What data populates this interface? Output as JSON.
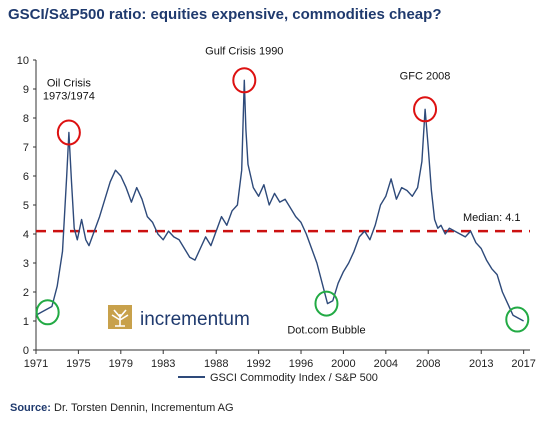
{
  "title": "GSCI/S&P500 ratio: equities expensive, commodities cheap?",
  "source_label": "Source:",
  "source_text": "Dr. Torsten Dennin, Incrementum AG",
  "logo_text": "incrementum",
  "chart_data": {
    "type": "line",
    "xlim": [
      1971,
      2017.6
    ],
    "ylim": [
      0,
      10
    ],
    "yticks": [
      0,
      1,
      2,
      3,
      4,
      5,
      6,
      7,
      8,
      9,
      10
    ],
    "xtick_labels": [
      "1971",
      "1975",
      "1979",
      "1983",
      "1988",
      "1992",
      "1996",
      "2000",
      "2004",
      "2008",
      "2013",
      "2017"
    ],
    "xtick_values": [
      1971,
      1975,
      1979,
      1983,
      1988,
      1992,
      1996,
      2000,
      2004,
      2008,
      2013,
      2017
    ],
    "grid": false,
    "legend": "bottom",
    "series": [
      {
        "name": "GSCI Commodity Index / S&P 500",
        "color": "#2e4a7a",
        "x": [
          1971.0,
          1971.5,
          1972.0,
          1972.5,
          1973.0,
          1973.5,
          1973.9,
          1974.1,
          1974.35,
          1974.6,
          1974.9,
          1975.3,
          1975.7,
          1976.0,
          1976.5,
          1977.0,
          1977.5,
          1978.0,
          1978.5,
          1979.0,
          1979.5,
          1980.0,
          1980.5,
          1981.0,
          1981.5,
          1982.0,
          1982.5,
          1983.0,
          1983.5,
          1984.0,
          1984.5,
          1985.0,
          1985.5,
          1986.0,
          1986.5,
          1987.0,
          1987.5,
          1988.0,
          1988.5,
          1989.0,
          1989.5,
          1990.0,
          1990.4,
          1990.65,
          1990.8,
          1991.0,
          1991.5,
          1992.0,
          1992.5,
          1993.0,
          1993.5,
          1994.0,
          1994.5,
          1995.0,
          1995.5,
          1996.0,
          1996.5,
          1997.0,
          1997.5,
          1998.0,
          1998.5,
          1999.0,
          1999.5,
          2000.0,
          2000.5,
          2001.0,
          2001.5,
          2002.0,
          2002.5,
          2003.0,
          2003.5,
          2004.0,
          2004.5,
          2005.0,
          2005.5,
          2006.0,
          2006.5,
          2007.0,
          2007.4,
          2007.7,
          2008.0,
          2008.3,
          2008.6,
          2008.9,
          2009.2,
          2009.6,
          2010.0,
          2010.5,
          2011.0,
          2011.5,
          2012.0,
          2012.5,
          2013.0,
          2013.5,
          2014.0,
          2014.5,
          2015.0,
          2015.5,
          2016.0,
          2016.5,
          2017.0
        ],
        "values": [
          1.2,
          1.3,
          1.4,
          1.5,
          2.2,
          3.4,
          6.0,
          7.5,
          5.8,
          4.2,
          3.8,
          4.5,
          3.8,
          3.6,
          4.1,
          4.6,
          5.2,
          5.8,
          6.2,
          6.0,
          5.6,
          5.1,
          5.6,
          5.2,
          4.6,
          4.4,
          4.0,
          3.8,
          4.1,
          3.9,
          3.8,
          3.5,
          3.2,
          3.1,
          3.5,
          3.9,
          3.6,
          4.1,
          4.6,
          4.3,
          4.8,
          5.0,
          6.2,
          9.3,
          7.6,
          6.4,
          5.6,
          5.3,
          5.7,
          5.0,
          5.4,
          5.1,
          5.2,
          4.9,
          4.6,
          4.4,
          4.0,
          3.5,
          3.0,
          2.3,
          1.6,
          1.7,
          2.3,
          2.7,
          3.0,
          3.4,
          3.9,
          4.1,
          3.8,
          4.3,
          5.0,
          5.3,
          5.9,
          5.2,
          5.6,
          5.5,
          5.3,
          5.6,
          6.5,
          8.3,
          7.0,
          5.5,
          4.5,
          4.2,
          4.3,
          4.0,
          4.2,
          4.1,
          4.0,
          3.9,
          4.1,
          3.7,
          3.5,
          3.1,
          2.8,
          2.6,
          2.0,
          1.6,
          1.2,
          1.1,
          1.0
        ]
      }
    ],
    "median": {
      "value": 4.1,
      "label": "Median: 4.1",
      "color": "#cc1111"
    },
    "annotations": [
      {
        "text_lines": [
          "Oil Crisis",
          "1973/1974"
        ],
        "x": 1974.1,
        "y": 7.5,
        "marker_color": "#dd1111"
      },
      {
        "text_lines": [
          "Gulf Crisis 1990"
        ],
        "x": 1990.65,
        "y": 9.3,
        "marker_color": "#dd1111"
      },
      {
        "text_lines": [
          "GFC 2008"
        ],
        "x": 2007.7,
        "y": 8.3,
        "marker_color": "#dd1111"
      },
      {
        "text_lines": [
          "Dot.com Bubble"
        ],
        "x": 1998.4,
        "y": 1.6,
        "marker_color": "#22aa44"
      },
      {
        "text_lines": [],
        "x": 1972.1,
        "y": 1.3,
        "marker_color": "#22aa44"
      },
      {
        "text_lines": [],
        "x": 2016.4,
        "y": 1.05,
        "marker_color": "#22aa44"
      }
    ]
  }
}
